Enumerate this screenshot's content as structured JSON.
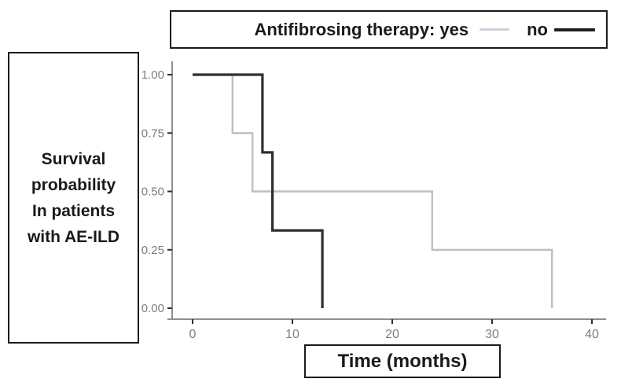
{
  "figure": {
    "left_label_lines": [
      "Survival",
      "probability",
      "In patients",
      "with AE-ILD"
    ],
    "x_axis_box_label": "Time (months)",
    "legend": {
      "title": "Antifibrosing therapy: yes",
      "no_label": "no",
      "yes_sample_color": "#ccd1d8",
      "no_sample_color": "#1f1f1f"
    }
  },
  "chart_data": {
    "type": "line",
    "subtype": "kaplan-meier-step",
    "title": "Antifibrosing therapy: yes / no",
    "xlabel": "Time (months)",
    "ylabel": "Survival probability In patients with AE-ILD",
    "xlim": [
      0,
      41
    ],
    "ylim": [
      0,
      1
    ],
    "grid": false,
    "legend_position": "top",
    "x_ticks": [
      {
        "label": "0",
        "value": 0
      },
      {
        "label": "10",
        "value": 10
      },
      {
        "label": "20",
        "value": 20
      },
      {
        "label": "30",
        "value": 30
      },
      {
        "label": "40",
        "value": 40
      }
    ],
    "y_ticks": [
      {
        "label": "1.00",
        "value": 1.0
      },
      {
        "label": "0.75",
        "value": 0.75
      },
      {
        "label": "0.50",
        "value": 0.5
      },
      {
        "label": "0.25",
        "value": 0.25
      },
      {
        "label": "0.00",
        "value": 0.0
      }
    ],
    "series": [
      {
        "name": "Antifibrosing therapy: yes",
        "short_label": "yes",
        "color": "#bfbfbf",
        "line_width": 2.4,
        "event_times_months": [
          4,
          6,
          24,
          36
        ],
        "points": [
          [
            0,
            1.0
          ],
          [
            4,
            1.0
          ],
          [
            4,
            0.75
          ],
          [
            6,
            0.75
          ],
          [
            6,
            0.5
          ],
          [
            24,
            0.5
          ],
          [
            24,
            0.25
          ],
          [
            36,
            0.25
          ],
          [
            36,
            0.0
          ]
        ]
      },
      {
        "name": "Antifibrosing therapy: no",
        "short_label": "no",
        "color": "#2f2f2f",
        "line_width": 3.2,
        "event_times_months": [
          7,
          8,
          13
        ],
        "points": [
          [
            0,
            1.0
          ],
          [
            7,
            1.0
          ],
          [
            7,
            0.667
          ],
          [
            8,
            0.667
          ],
          [
            8,
            0.333
          ],
          [
            13,
            0.333
          ],
          [
            13,
            0.0
          ]
        ]
      }
    ],
    "axis_color": "#8f8f8f",
    "tick_color": "#2f2f2f",
    "tick_label_color": "#7d7d7d"
  }
}
